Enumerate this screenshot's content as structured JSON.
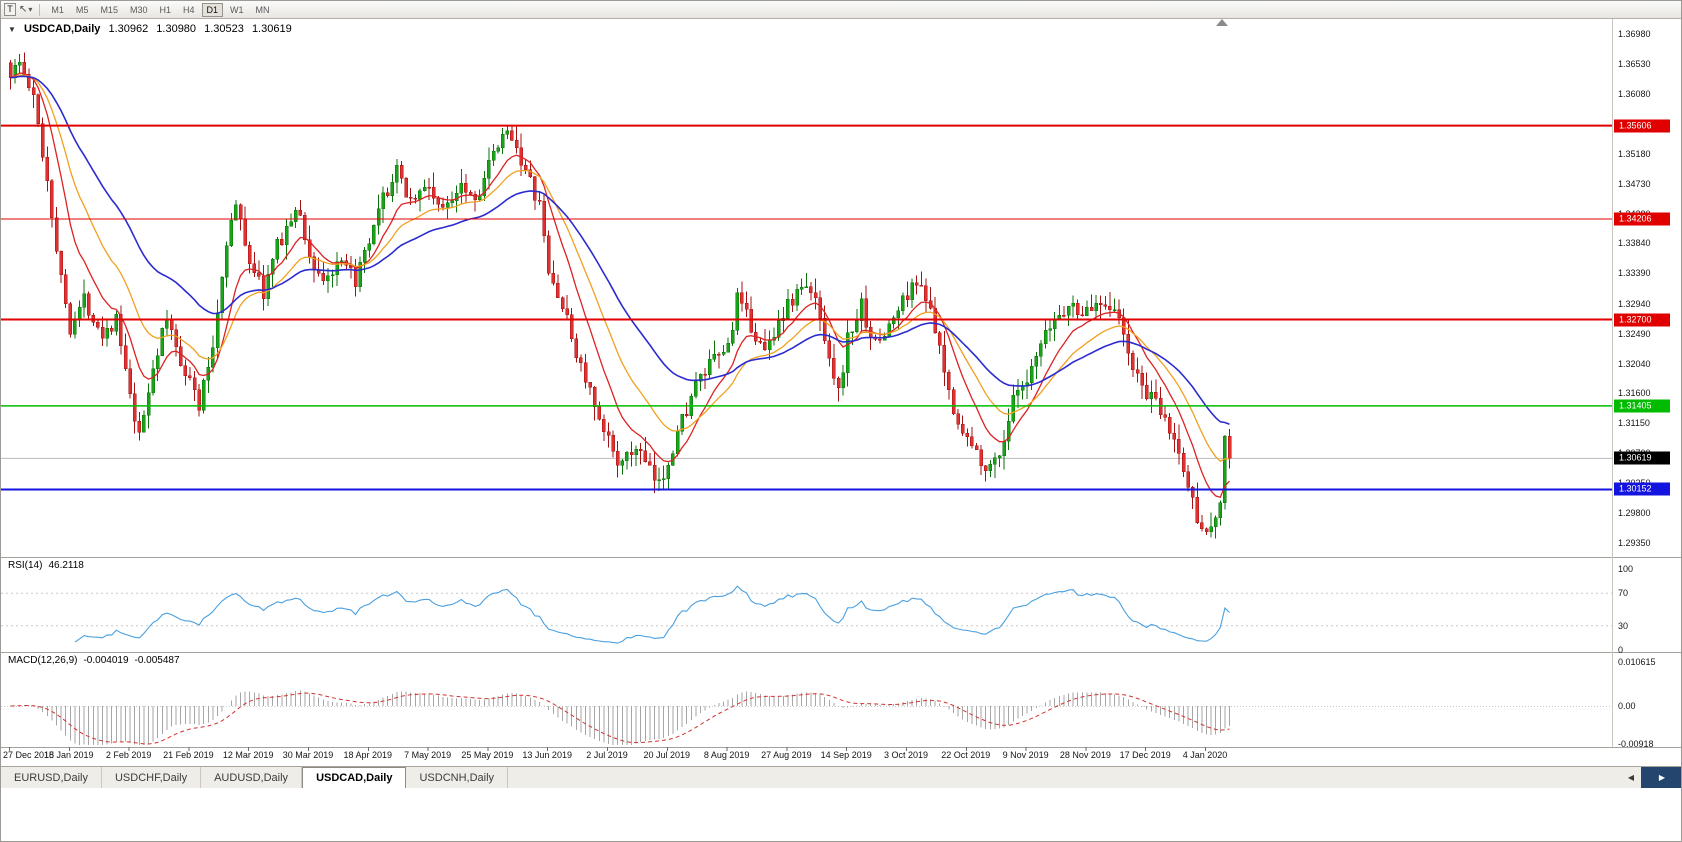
{
  "toolbar": {
    "t_button": "T",
    "cursor_icon": "↖",
    "dropdown_icon": "▾",
    "timeframes": [
      "M1",
      "M5",
      "M15",
      "M30",
      "H1",
      "H4",
      "D1",
      "W1",
      "MN"
    ],
    "active_timeframe": "D1"
  },
  "chart": {
    "collapse_icon": "▼",
    "symbol": "USDCAD,Daily",
    "ohlc": {
      "open": "1.30962",
      "high": "1.30980",
      "low": "1.30523",
      "close": "1.30619"
    }
  },
  "price_axis": {
    "labels": [
      "1.36980",
      "1.36530",
      "1.36080",
      "1.35630",
      "1.35180",
      "1.34730",
      "1.34280",
      "1.33840",
      "1.33390",
      "1.32940",
      "1.32490",
      "1.32040",
      "1.31600",
      "1.31150",
      "1.30700",
      "1.30250",
      "1.29800",
      "1.29350"
    ]
  },
  "date_axis": {
    "labels": [
      "27 Dec 2018",
      "15 Jan 2019",
      "2 Feb 2019",
      "21 Feb 2019",
      "12 Mar 2019",
      "30 Mar 2019",
      "18 Apr 2019",
      "7 May 2019",
      "25 May 2019",
      "13 Jun 2019",
      "2 Jul 2019",
      "20 Jul 2019",
      "8 Aug 2019",
      "27 Aug 2019",
      "14 Sep 2019",
      "3 Oct 2019",
      "22 Oct 2019",
      "9 Nov 2019",
      "28 Nov 2019",
      "17 Dec 2019",
      "4 Jan 2020"
    ]
  },
  "levels": [
    {
      "price": 1.35606,
      "label": "1.35606",
      "color": "#e00000",
      "width": 2
    },
    {
      "price": 1.34206,
      "label": "1.34206",
      "color": "#e00000",
      "width": 1
    },
    {
      "price": 1.327,
      "label": "1.32700",
      "color": "#e00000",
      "width": 2
    },
    {
      "price": 1.31405,
      "label": "1.31405",
      "color": "#00bb00",
      "width": 1.5
    },
    {
      "price": 1.30152,
      "label": "1.30152",
      "color": "#1414e0",
      "width": 2
    }
  ],
  "current_price": {
    "price": 1.30619,
    "label": "1.30619",
    "badge_bg": "#000000",
    "line_color": "#bcbcbc"
  },
  "rsi_panel": {
    "title": "RSI(14)",
    "value": "46.2118",
    "axis_labels": [
      "100",
      "70",
      "30",
      "0"
    ],
    "guide_levels": [
      70,
      30
    ]
  },
  "macd_panel": {
    "title": "MACD(12,26,9)",
    "main_value": "-0.004019",
    "signal_value": "-0.005487",
    "axis_labels": [
      "0.010615",
      "0.00",
      "-0.00918"
    ]
  },
  "tabs": {
    "items": [
      {
        "label": "EURUSD,Daily",
        "active": false
      },
      {
        "label": "USDCHF,Daily",
        "active": false
      },
      {
        "label": "AUDUSD,Daily",
        "active": false
      },
      {
        "label": "USDCAD,Daily",
        "active": true
      },
      {
        "label": "USDCNH,Daily",
        "active": false
      }
    ],
    "scroll_left_icon": "◀",
    "scroll_right_icon": "▶"
  },
  "chart_data": {
    "type": "candlestick",
    "symbol": "USDCAD",
    "timeframe": "Daily",
    "price_range": [
      1.2914,
      1.3722
    ],
    "candle_count": 266,
    "close_path_anchors": [
      [
        0,
        1.364
      ],
      [
        2,
        1.3655
      ],
      [
        5,
        1.36
      ],
      [
        8,
        1.348
      ],
      [
        11,
        1.333
      ],
      [
        13,
        1.326
      ],
      [
        16,
        1.33
      ],
      [
        20,
        1.325
      ],
      [
        23,
        1.327
      ],
      [
        26,
        1.315
      ],
      [
        28,
        1.309
      ],
      [
        31,
        1.32
      ],
      [
        34,
        1.327
      ],
      [
        37,
        1.321
      ],
      [
        39,
        1.318
      ],
      [
        41,
        1.314
      ],
      [
        44,
        1.323
      ],
      [
        47,
        1.339
      ],
      [
        49,
        1.344
      ],
      [
        52,
        1.336
      ],
      [
        55,
        1.331
      ],
      [
        58,
        1.338
      ],
      [
        61,
        1.342
      ],
      [
        63,
        1.343
      ],
      [
        65,
        1.336
      ],
      [
        68,
        1.333
      ],
      [
        72,
        1.335
      ],
      [
        75,
        1.333
      ],
      [
        78,
        1.338
      ],
      [
        81,
        1.345
      ],
      [
        84,
        1.349
      ],
      [
        87,
        1.345
      ],
      [
        91,
        1.347
      ],
      [
        94,
        1.343
      ],
      [
        98,
        1.348
      ],
      [
        101,
        1.345
      ],
      [
        104,
        1.35
      ],
      [
        107,
        1.354
      ],
      [
        109,
        1.355
      ],
      [
        112,
        1.349
      ],
      [
        115,
        1.344
      ],
      [
        117,
        1.334
      ],
      [
        120,
        1.329
      ],
      [
        123,
        1.322
      ],
      [
        126,
        1.316
      ],
      [
        128,
        1.311
      ],
      [
        130,
        1.309
      ],
      [
        133,
        1.305
      ],
      [
        136,
        1.308
      ],
      [
        139,
        1.304
      ],
      [
        141,
        1.302
      ],
      [
        143,
        1.306
      ],
      [
        146,
        1.312
      ],
      [
        149,
        1.317
      ],
      [
        152,
        1.32
      ],
      [
        156,
        1.323
      ],
      [
        158,
        1.33
      ],
      [
        161,
        1.326
      ],
      [
        164,
        1.322
      ],
      [
        167,
        1.327
      ],
      [
        169,
        1.329
      ],
      [
        172,
        1.332
      ],
      [
        175,
        1.33
      ],
      [
        178,
        1.322
      ],
      [
        180,
        1.316
      ],
      [
        182,
        1.324
      ],
      [
        185,
        1.329
      ],
      [
        188,
        1.323
      ],
      [
        191,
        1.326
      ],
      [
        195,
        1.331
      ],
      [
        198,
        1.333
      ],
      [
        201,
        1.325
      ],
      [
        204,
        1.316
      ],
      [
        207,
        1.31
      ],
      [
        210,
        1.307
      ],
      [
        213,
        1.3045
      ],
      [
        216,
        1.309
      ],
      [
        218,
        1.315
      ],
      [
        221,
        1.317
      ],
      [
        224,
        1.323
      ],
      [
        227,
        1.327
      ],
      [
        230,
        1.329
      ],
      [
        234,
        1.328
      ],
      [
        237,
        1.33
      ],
      [
        240,
        1.329
      ],
      [
        243,
        1.322
      ],
      [
        245,
        1.318
      ],
      [
        247,
        1.316
      ],
      [
        250,
        1.313
      ],
      [
        253,
        1.309
      ],
      [
        256,
        1.302
      ],
      [
        258,
        1.2975
      ],
      [
        260,
        1.296
      ],
      [
        261,
        1.295
      ],
      [
        263,
        1.2995
      ],
      [
        264,
        1.3095
      ],
      [
        265,
        1.3062
      ]
    ],
    "moving_averages": [
      {
        "name": "ema-fast",
        "period": 10,
        "color": "#dd2222"
      },
      {
        "name": "ema-medium",
        "period": 20,
        "color": "#f0a020"
      },
      {
        "name": "ema-slow",
        "period": 40,
        "color": "#2b2bd0"
      }
    ],
    "candle_colors": {
      "up_fill": "#17a517",
      "up_stroke": "#0b720b",
      "down_fill": "#e03030",
      "down_stroke": "#a31212"
    },
    "indicators": {
      "rsi": {
        "period": 14,
        "current": 46.2118,
        "color": "#4aa0e0",
        "range": [
          0,
          100
        ]
      },
      "macd": {
        "fast": 12,
        "slow": 26,
        "signal_period": 9,
        "current_main": -0.004019,
        "current_signal": -0.005487,
        "histogram_color": "#a6a6a6",
        "signal_color": "#d23333",
        "axis_max": 0.010615,
        "axis_min": -0.00918
      }
    }
  }
}
